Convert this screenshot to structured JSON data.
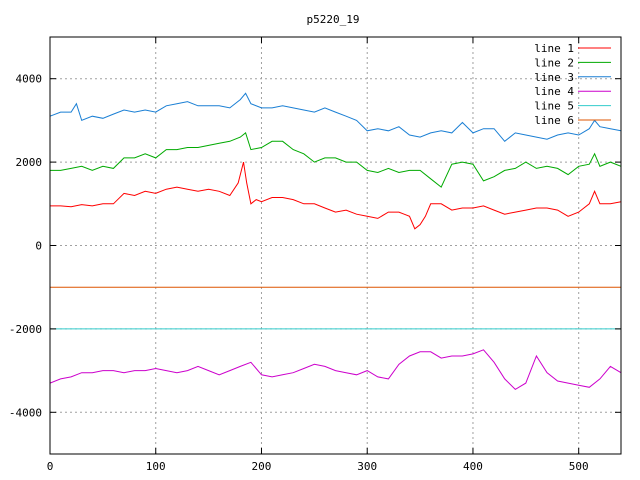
{
  "chart_data": {
    "type": "line",
    "title": "p5220_19",
    "xlabel": "",
    "ylabel": "",
    "xlim": [
      0,
      540
    ],
    "ylim": [
      -5000,
      5000
    ],
    "xticks": [
      0,
      100,
      200,
      300,
      400,
      500
    ],
    "yticks": [
      -4000,
      -2000,
      0,
      2000,
      4000
    ],
    "grid": true,
    "legend_position": "top-right",
    "series": [
      {
        "name": "line 1",
        "color": "#ff0000",
        "x": [
          0,
          10,
          20,
          30,
          40,
          50,
          60,
          70,
          80,
          90,
          100,
          110,
          120,
          130,
          140,
          150,
          160,
          170,
          178,
          183,
          186,
          190,
          195,
          200,
          210,
          220,
          230,
          240,
          250,
          260,
          270,
          280,
          290,
          300,
          310,
          320,
          330,
          335,
          340,
          345,
          350,
          355,
          360,
          370,
          380,
          390,
          400,
          410,
          420,
          430,
          440,
          450,
          460,
          470,
          480,
          490,
          500,
          510,
          515,
          520,
          530,
          540
        ],
        "y": [
          950,
          950,
          930,
          980,
          950,
          1000,
          1000,
          1250,
          1200,
          1300,
          1250,
          1350,
          1400,
          1350,
          1300,
          1350,
          1300,
          1200,
          1500,
          2000,
          1500,
          1000,
          1100,
          1050,
          1150,
          1150,
          1100,
          1000,
          1000,
          900,
          800,
          850,
          750,
          700,
          650,
          800,
          800,
          750,
          700,
          400,
          500,
          700,
          1000,
          1000,
          850,
          900,
          900,
          950,
          850,
          750,
          800,
          850,
          900,
          900,
          850,
          700,
          800,
          1000,
          1300,
          1000,
          1000,
          1050
        ]
      },
      {
        "name": "line 2",
        "color": "#00aa00",
        "x": [
          0,
          10,
          20,
          30,
          40,
          50,
          60,
          70,
          80,
          90,
          100,
          110,
          120,
          130,
          140,
          150,
          160,
          170,
          180,
          185,
          190,
          200,
          210,
          220,
          230,
          240,
          250,
          260,
          270,
          280,
          290,
          300,
          310,
          320,
          330,
          340,
          350,
          360,
          370,
          380,
          390,
          400,
          410,
          420,
          430,
          440,
          450,
          460,
          470,
          480,
          490,
          500,
          510,
          515,
          520,
          530,
          540
        ],
        "y": [
          1800,
          1800,
          1850,
          1900,
          1800,
          1900,
          1850,
          2100,
          2100,
          2200,
          2100,
          2300,
          2300,
          2350,
          2350,
          2400,
          2450,
          2500,
          2600,
          2700,
          2300,
          2350,
          2500,
          2500,
          2300,
          2200,
          2000,
          2100,
          2100,
          2000,
          2000,
          1800,
          1750,
          1850,
          1750,
          1800,
          1800,
          1600,
          1400,
          1950,
          2000,
          1950,
          1550,
          1650,
          1800,
          1850,
          2000,
          1850,
          1900,
          1850,
          1700,
          1900,
          1950,
          2200,
          1900,
          2000,
          1900
        ]
      },
      {
        "name": "line 3",
        "color": "#1a7fd4",
        "x": [
          0,
          10,
          20,
          25,
          30,
          40,
          50,
          60,
          70,
          80,
          90,
          100,
          110,
          120,
          130,
          140,
          150,
          160,
          170,
          180,
          185,
          190,
          200,
          210,
          220,
          230,
          240,
          250,
          260,
          270,
          280,
          290,
          300,
          310,
          320,
          330,
          340,
          350,
          360,
          370,
          380,
          390,
          400,
          410,
          420,
          430,
          440,
          450,
          460,
          470,
          480,
          490,
          500,
          510,
          515,
          520,
          530,
          540
        ],
        "y": [
          3100,
          3200,
          3200,
          3400,
          3000,
          3100,
          3050,
          3150,
          3250,
          3200,
          3250,
          3200,
          3350,
          3400,
          3450,
          3350,
          3350,
          3350,
          3300,
          3500,
          3650,
          3400,
          3300,
          3300,
          3350,
          3300,
          3250,
          3200,
          3300,
          3200,
          3100,
          3000,
          2750,
          2800,
          2750,
          2850,
          2650,
          2600,
          2700,
          2750,
          2700,
          2950,
          2700,
          2800,
          2800,
          2500,
          2700,
          2650,
          2600,
          2550,
          2650,
          2700,
          2650,
          2800,
          3000,
          2850,
          2800,
          2750
        ]
      },
      {
        "name": "line 4",
        "color": "#cc00cc",
        "x": [
          0,
          10,
          20,
          30,
          40,
          50,
          60,
          70,
          80,
          90,
          100,
          110,
          120,
          130,
          140,
          150,
          160,
          170,
          180,
          190,
          200,
          210,
          220,
          230,
          240,
          250,
          260,
          270,
          280,
          290,
          300,
          310,
          320,
          330,
          340,
          350,
          360,
          370,
          380,
          390,
          400,
          410,
          420,
          430,
          440,
          450,
          460,
          470,
          480,
          490,
          500,
          510,
          520,
          530,
          540
        ],
        "y": [
          -3300,
          -3200,
          -3150,
          -3050,
          -3050,
          -3000,
          -3000,
          -3050,
          -3000,
          -3000,
          -2950,
          -3000,
          -3050,
          -3000,
          -2900,
          -3000,
          -3100,
          -3000,
          -2900,
          -2800,
          -3100,
          -3150,
          -3100,
          -3050,
          -2950,
          -2850,
          -2900,
          -3000,
          -3050,
          -3100,
          -3000,
          -3150,
          -3200,
          -2850,
          -2650,
          -2550,
          -2550,
          -2700,
          -2650,
          -2650,
          -2600,
          -2500,
          -2800,
          -3200,
          -3450,
          -3300,
          -2650,
          -3050,
          -3250,
          -3300,
          -3350,
          -3400,
          -3200,
          -2900,
          -3050
        ]
      },
      {
        "name": "line 5",
        "color": "#33cccc",
        "x": [
          0,
          540
        ],
        "y": [
          -2000,
          -2000
        ]
      },
      {
        "name": "line 6",
        "color": "#dd5500",
        "x": [
          0,
          540
        ],
        "y": [
          -1000,
          -1000
        ]
      }
    ]
  }
}
